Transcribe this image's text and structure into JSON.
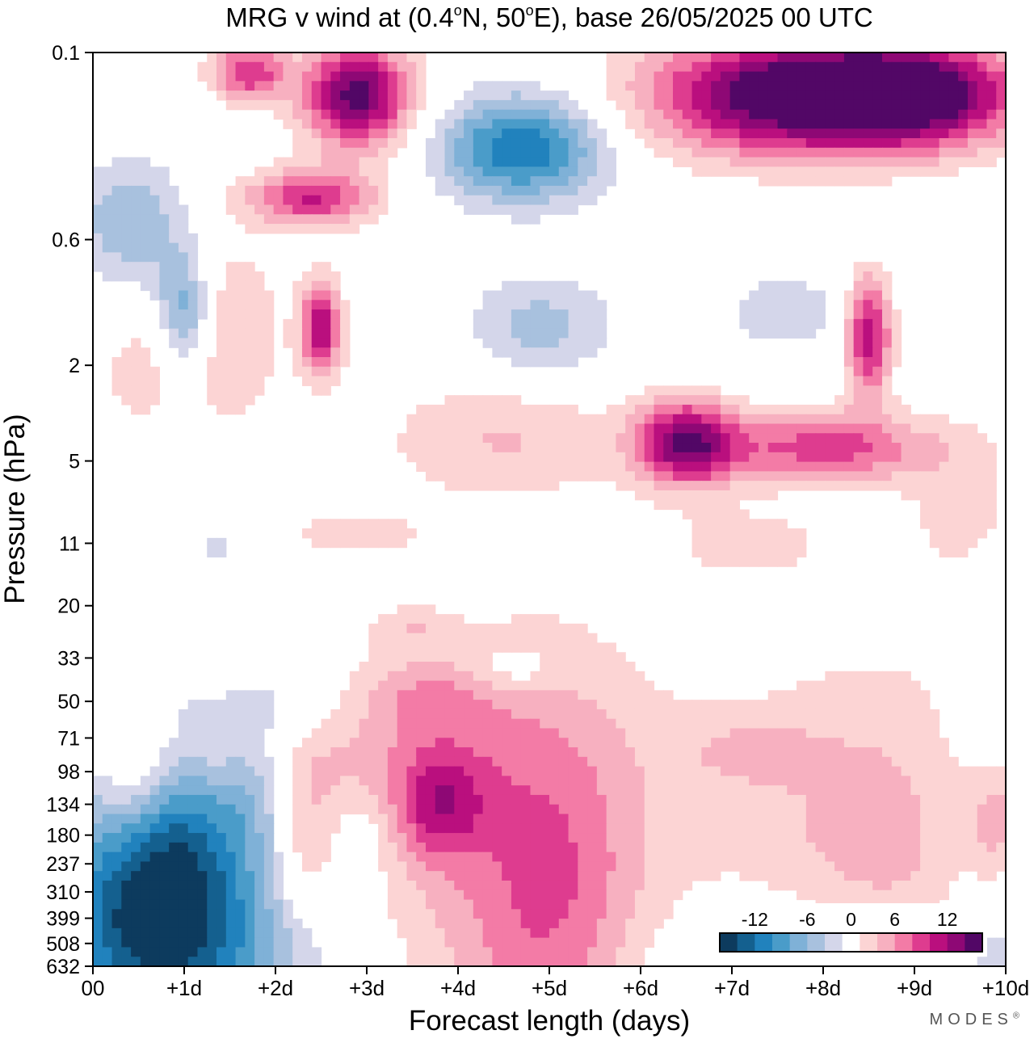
{
  "chart_data": {
    "type": "heatmap",
    "title_parts": {
      "before": "MRG v wind at (0.4",
      "deg1": "o",
      "mid1": "N, 50",
      "deg2": "o",
      "after": "E),  base 26/05/2025  00 UTC"
    },
    "xlabel": "Forecast length (days)",
    "ylabel": "Pressure (hPa)",
    "x_ticks": [
      "00",
      "+1d",
      "+2d",
      "+3d",
      "+4d",
      "+5d",
      "+6d",
      "+7d",
      "+8d",
      "+9d",
      "+10d"
    ],
    "x_range": [
      0,
      10
    ],
    "y_ticks": [
      "0.1",
      "0.6",
      "2",
      "5",
      "11",
      "20",
      "33",
      "50",
      "71",
      "98",
      "134",
      "180",
      "237",
      "310",
      "399",
      "508",
      "632"
    ],
    "y_scale": "log",
    "y_range": [
      0.1,
      632
    ],
    "colorbar": {
      "tick_labels": [
        "-12",
        "-6",
        "0",
        "6",
        "12"
      ],
      "tick_values": [
        -12,
        -6,
        0,
        6,
        12
      ],
      "boundaries": [
        -16,
        -14,
        -12,
        -10,
        -8,
        -6,
        -4,
        -2,
        2,
        4,
        6,
        8,
        10,
        12,
        14,
        16
      ],
      "colors": [
        "#0d3b5e",
        "#14608f",
        "#2182bd",
        "#4a9cc9",
        "#7fb1d7",
        "#a8c1de",
        "#d4d6ea",
        "#ffffff",
        "#fcd4d4",
        "#f7b0c0",
        "#f37ba6",
        "#de3c8f",
        "#ba0f7e",
        "#8e0875",
        "#520766"
      ]
    },
    "features": [
      {
        "x": 0.9,
        "p": 264,
        "v": -9.5,
        "sx": 0.9,
        "sy": 0.55
      },
      {
        "x": 0.5,
        "p": 180,
        "v": -4.5,
        "sx": 0.7,
        "sy": 0.9
      },
      {
        "x": 1.3,
        "p": 300,
        "v": -3.5,
        "sx": 1.3,
        "sy": 0.6
      },
      {
        "x": 0.1,
        "p": 420,
        "v": -3,
        "sx": 0.5,
        "sy": 1.3
      },
      {
        "x": 1.8,
        "p": 440,
        "v": -1.5,
        "sx": 1.8,
        "sy": 0.4
      },
      {
        "x": 1.5,
        "p": 632,
        "v": -3,
        "sx": 1.5,
        "sy": 0.3
      },
      {
        "x": 7.5,
        "p": 632,
        "v": -4,
        "sx": 1.4,
        "sy": 0.3
      },
      {
        "x": 9.9,
        "p": 400,
        "v": -4,
        "sx": 0.5,
        "sy": 1.2
      },
      {
        "x": 1.8,
        "p": 104,
        "v": -4.5,
        "sx": 0.45,
        "sy": 0.28
      },
      {
        "x": 0.4,
        "p": 108,
        "v": 7.5,
        "sx": 0.45,
        "sy": 0.35
      },
      {
        "x": 3.8,
        "p": 134,
        "v": 7,
        "sx": 0.5,
        "sy": 0.22
      },
      {
        "x": 4.4,
        "p": 200,
        "v": 4.8,
        "sx": 2.4,
        "sy": 0.9
      },
      {
        "x": 5.0,
        "p": 340,
        "v": 4.5,
        "sx": 0.9,
        "sy": 0.8
      },
      {
        "x": 8.6,
        "p": 190,
        "v": 4.7,
        "sx": 1.4,
        "sy": 0.75
      },
      {
        "x": 9.9,
        "p": 165,
        "v": 6.5,
        "sx": 0.35,
        "sy": 0.3
      },
      {
        "x": 2.3,
        "p": 195,
        "v": 4.2,
        "sx": 0.35,
        "sy": 0.35
      },
      {
        "x": 3.0,
        "p": 180,
        "v": -2,
        "sx": 0.35,
        "sy": 0.2
      },
      {
        "x": 0.8,
        "p": 58,
        "v": 2.6,
        "sx": 1.4,
        "sy": 0.35
      },
      {
        "x": 2.5,
        "p": 75,
        "v": 2.5,
        "sx": 2.2,
        "sy": 0.25
      },
      {
        "x": 3.6,
        "p": 48,
        "v": 3.8,
        "sx": 0.8,
        "sy": 0.15
      },
      {
        "x": 2.0,
        "p": 52,
        "v": -4,
        "sx": 1.2,
        "sy": 0.18
      },
      {
        "x": 7.2,
        "p": 80,
        "v": 2.6,
        "sx": 0.8,
        "sy": 0.15
      },
      {
        "x": 7.5,
        "p": 0.15,
        "v": 15,
        "sx": 1.5,
        "sy": 0.25
      },
      {
        "x": 9.0,
        "p": 0.15,
        "v": 15,
        "sx": 1.2,
        "sy": 0.22
      },
      {
        "x": 2.9,
        "p": 0.15,
        "v": 15,
        "sx": 0.6,
        "sy": 0.22
      },
      {
        "x": 1.7,
        "p": 0.12,
        "v": 10,
        "sx": 0.4,
        "sy": 0.12
      },
      {
        "x": 2.4,
        "p": 0.4,
        "v": 10,
        "sx": 0.7,
        "sy": 0.12
      },
      {
        "x": 2.5,
        "p": 1.4,
        "v": 12,
        "sx": 0.22,
        "sy": 0.2
      },
      {
        "x": 4.7,
        "p": 0.25,
        "v": -12,
        "sx": 0.9,
        "sy": 0.22
      },
      {
        "x": 0.4,
        "p": 0.5,
        "v": -6,
        "sx": 0.6,
        "sy": 0.25
      },
      {
        "x": 1.0,
        "p": 1.2,
        "v": -8,
        "sx": 0.3,
        "sy": 0.25
      },
      {
        "x": 4.9,
        "p": 1.4,
        "v": -5,
        "sx": 0.8,
        "sy": 0.22
      },
      {
        "x": 6.5,
        "p": 4.2,
        "v": 13,
        "sx": 0.55,
        "sy": 0.18
      },
      {
        "x": 8.0,
        "p": 4.4,
        "v": 9,
        "sx": 1.2,
        "sy": 0.15
      },
      {
        "x": 4.5,
        "p": 4.0,
        "v": 4,
        "sx": 1.3,
        "sy": 0.25
      },
      {
        "x": 8.5,
        "p": 1.5,
        "v": 12,
        "sx": 0.25,
        "sy": 0.25
      },
      {
        "x": 1.5,
        "p": 1.5,
        "v": 4,
        "sx": 0.6,
        "sy": 0.4
      },
      {
        "x": 0.5,
        "p": 2.2,
        "v": 3,
        "sx": 0.5,
        "sy": 0.25
      },
      {
        "x": 7.6,
        "p": 1.2,
        "v": -3,
        "sx": 0.8,
        "sy": 0.2
      },
      {
        "x": 9.6,
        "p": 8,
        "v": 3,
        "sx": 0.7,
        "sy": 0.35
      },
      {
        "x": 2.7,
        "p": 10,
        "v": 2.6,
        "sx": 1.0,
        "sy": 0.1
      },
      {
        "x": 7.2,
        "p": 11,
        "v": 2.8,
        "sx": 0.9,
        "sy": 0.15
      },
      {
        "x": 1.5,
        "p": 11,
        "v": -2.6,
        "sx": 0.6,
        "sy": 0.15
      },
      {
        "x": 2.1,
        "p": 28,
        "v": -2.5,
        "sx": 0.5,
        "sy": 0.12
      },
      {
        "x": 4.6,
        "p": 38,
        "v": -2.5,
        "sx": 0.5,
        "sy": 0.1
      },
      {
        "x": 3.5,
        "p": 25,
        "v": 2.5,
        "sx": 0.4,
        "sy": 0.08
      }
    ]
  },
  "brand_text": "MODES",
  "brand_mark": "®"
}
